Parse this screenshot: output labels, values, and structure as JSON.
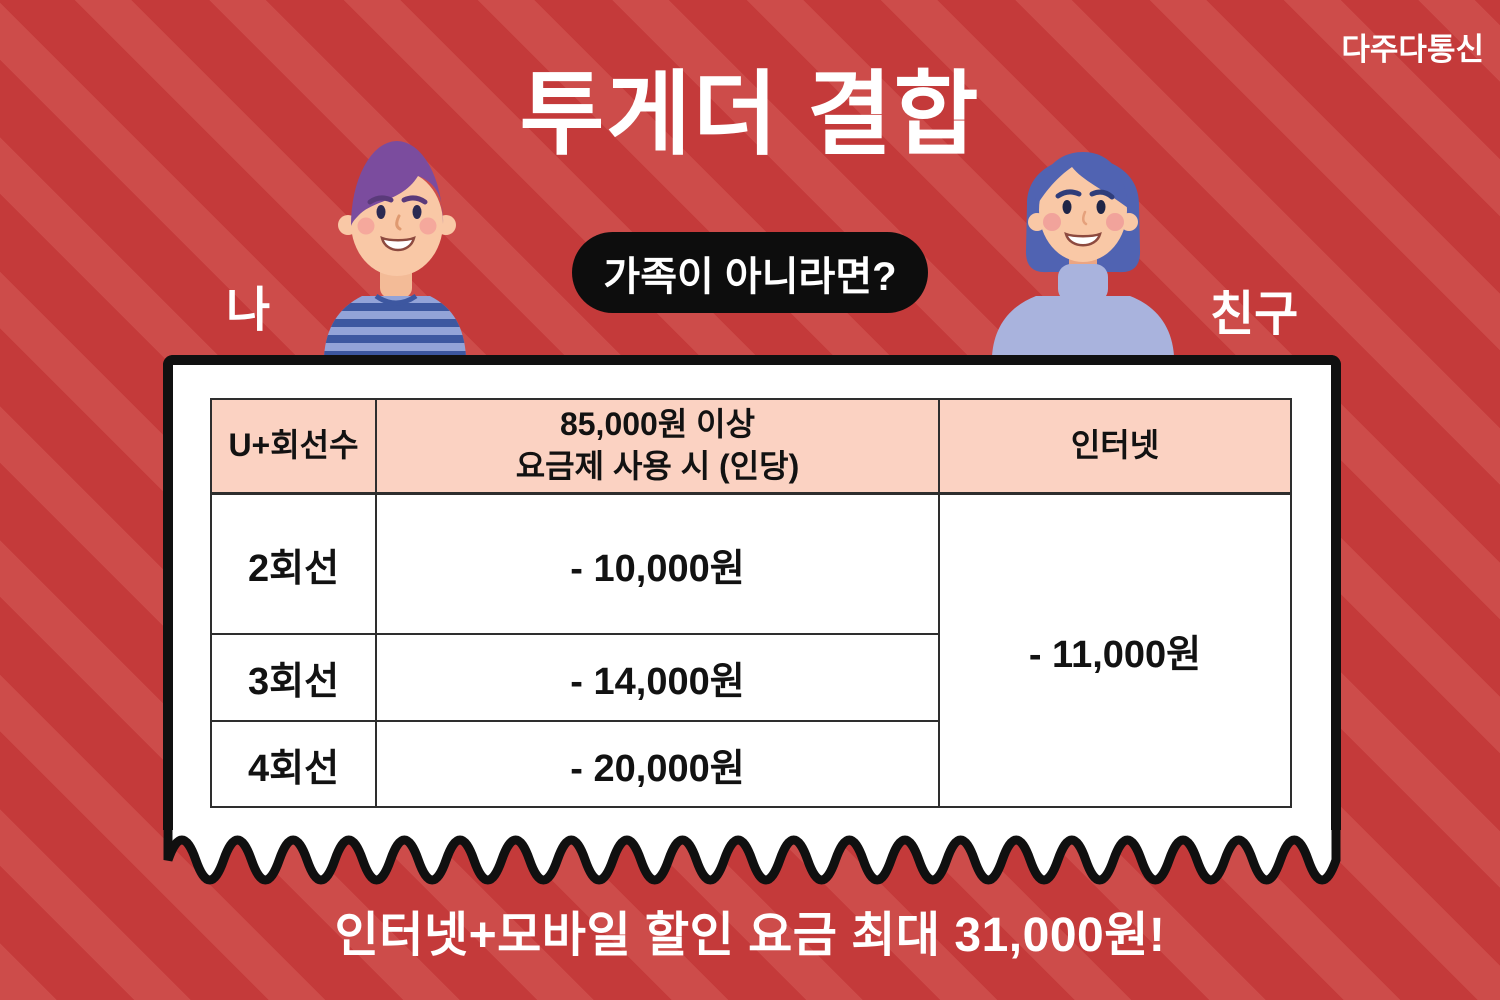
{
  "brand": {
    "logo_text": "다주다통신"
  },
  "title": "투게더 결합",
  "scene": {
    "me_label": "나",
    "friend_label": "친구",
    "question_badge": "가족이 아니라면?"
  },
  "pricing_table": {
    "header": {
      "col1": "U+회선수",
      "col2_line1": "85,000원 이상",
      "col2_line2": "요금제 사용 시 (인당)",
      "col3": "인터넷"
    },
    "rows": [
      {
        "lines": "2회선",
        "mobile_discount": "- 10,000원"
      },
      {
        "lines": "3회선",
        "mobile_discount": "- 14,000원"
      },
      {
        "lines": "4회선",
        "mobile_discount": "- 20,000원"
      }
    ],
    "internet_discount": "- 11,000원"
  },
  "footer_caption": "인터넷+모바일 할인 요금 최대 31,000원!",
  "colors": {
    "background_base": "#c43a3a",
    "background_stripe": "#cd4c4a",
    "table_header_fill": "#fbd2c2",
    "badge_background": "#0d0d0d",
    "card_outline": "#101010",
    "card_background": "#ffffff",
    "text_on_red": "#ffffff",
    "text_on_card": "#121212"
  }
}
